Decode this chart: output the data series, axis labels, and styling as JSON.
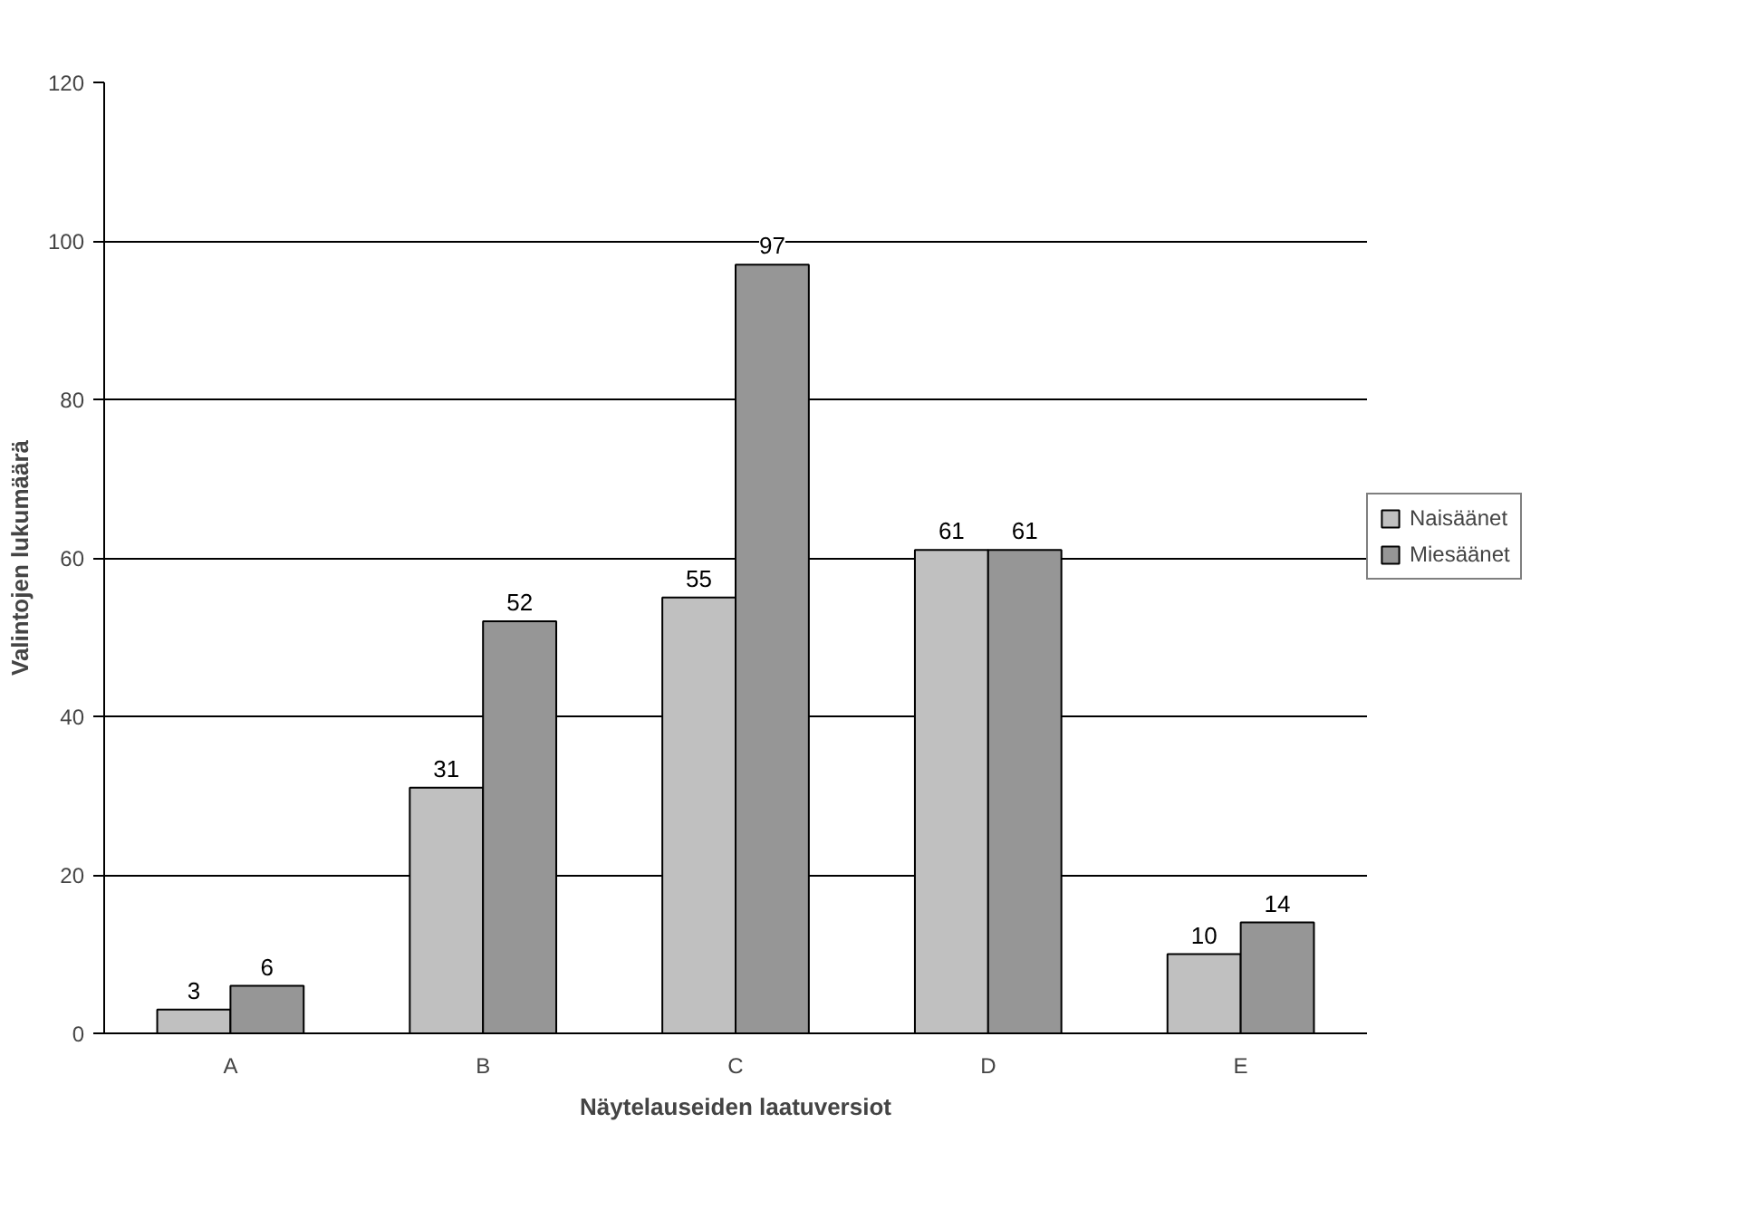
{
  "chart_data": {
    "type": "bar",
    "xlabel": "Näytelauseiden laatuversiot",
    "ylabel": "Valintojen lukumäärä",
    "categories": [
      "A",
      "B",
      "C",
      "D",
      "E"
    ],
    "series": [
      {
        "name": "Naisäänet",
        "color": "#c0c0c0",
        "values": [
          3,
          31,
          55,
          61,
          10
        ]
      },
      {
        "name": "Miesäänet",
        "color": "#969696",
        "values": [
          6,
          52,
          97,
          61,
          14
        ]
      }
    ],
    "ylim": [
      0,
      120
    ],
    "yticks": [
      0,
      20,
      40,
      60,
      80,
      100,
      120
    ],
    "grid": "y",
    "legend": "right",
    "data_labels": true
  }
}
